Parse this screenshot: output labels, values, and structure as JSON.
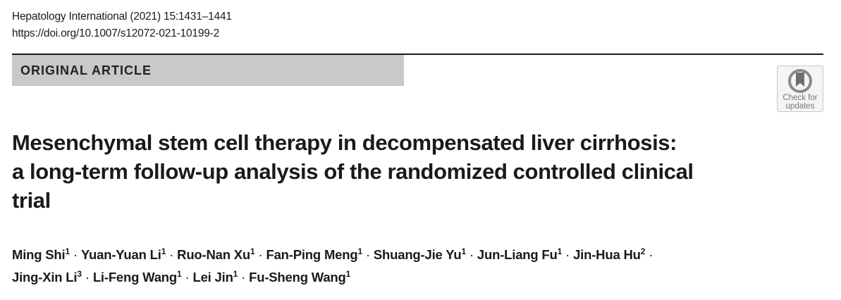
{
  "journal": {
    "citation": "Hepatology International (2021) 15:1431–1441",
    "doi": "https://doi.org/10.1007/s12072-021-10199-2"
  },
  "article_type": "ORIGINAL ARTICLE",
  "check_updates": {
    "line1": "Check for",
    "line2": "updates",
    "icon": "bookmark-circle-icon"
  },
  "title": {
    "line1": "Mesenchymal stem cell therapy in decompensated liver cirrhosis:",
    "line2": "a long-term follow-up analysis of the randomized controlled clinical",
    "line3": "trial"
  },
  "authors": [
    {
      "name": "Ming Shi",
      "aff": "1"
    },
    {
      "name": "Yuan-Yuan Li",
      "aff": "1"
    },
    {
      "name": "Ruo-Nan Xu",
      "aff": "1"
    },
    {
      "name": "Fan-Ping Meng",
      "aff": "1"
    },
    {
      "name": "Shuang-Jie Yu",
      "aff": "1"
    },
    {
      "name": "Jun-Liang Fu",
      "aff": "1"
    },
    {
      "name": "Jin-Hua Hu",
      "aff": "2"
    },
    {
      "name": "Jing-Xin Li",
      "aff": "3"
    },
    {
      "name": "Li-Feng Wang",
      "aff": "1"
    },
    {
      "name": "Lei Jin",
      "aff": "1"
    },
    {
      "name": "Fu-Sheng Wang",
      "aff": "1"
    }
  ],
  "separator": "·"
}
